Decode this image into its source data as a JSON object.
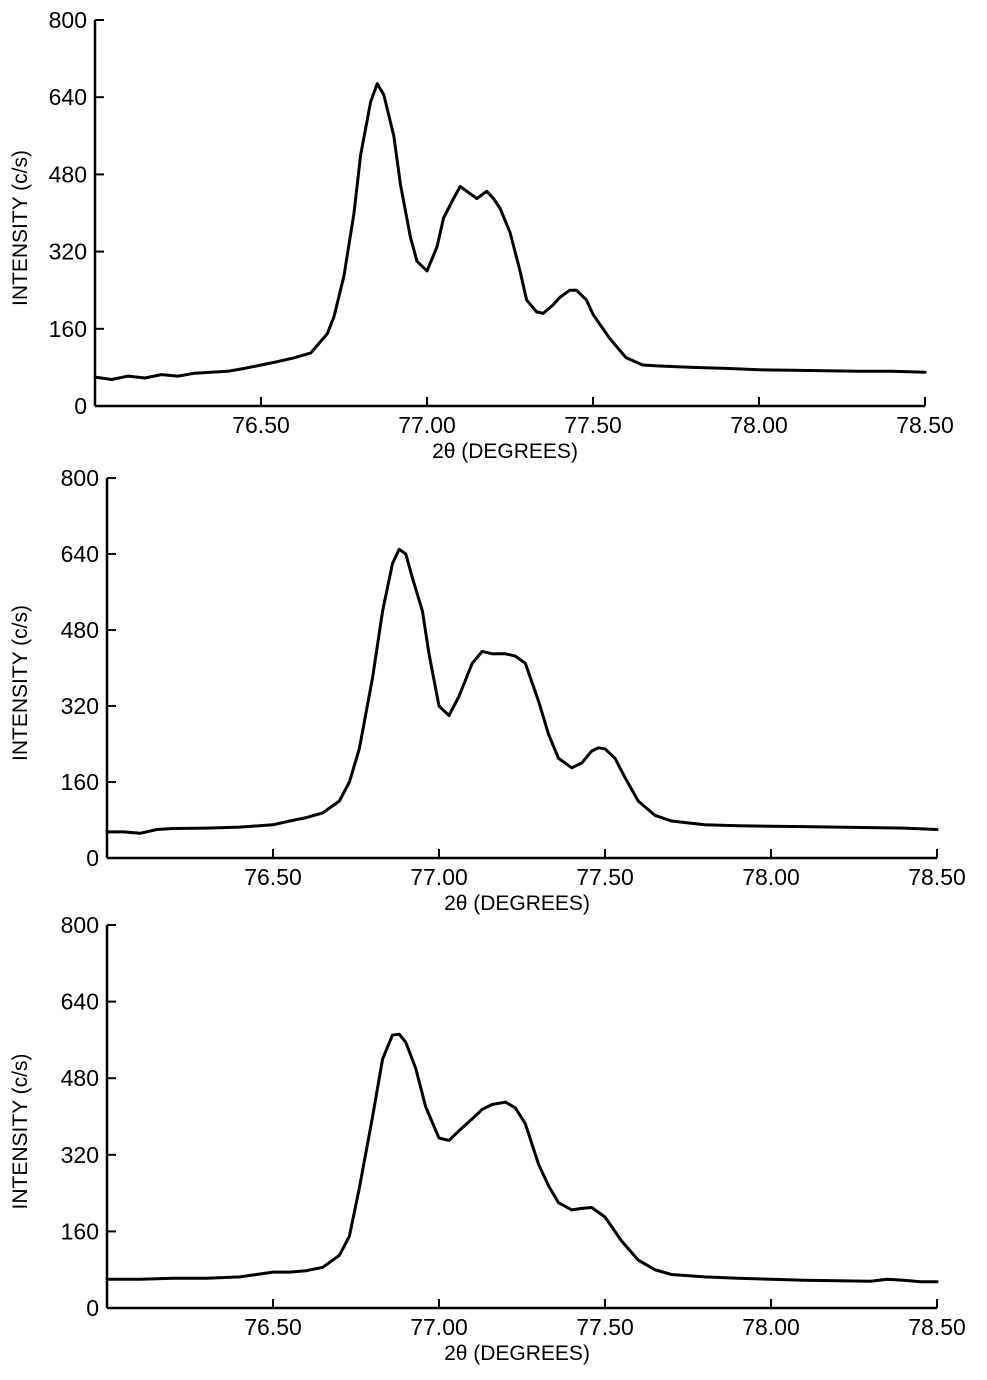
{
  "chart_data": [
    {
      "type": "line",
      "xlabel": "2θ (DEGREES)",
      "ylabel": "INTENSITY (c/s)",
      "xlim": [
        76.0,
        78.5
      ],
      "ylim": [
        0,
        800
      ],
      "xticks": [
        76.5,
        77.0,
        77.5,
        78.0,
        78.5
      ],
      "xtick_labels": [
        "76.50",
        "77.00",
        "77.50",
        "78.00",
        "78.50"
      ],
      "yticks": [
        0,
        160,
        320,
        480,
        640,
        800
      ],
      "ytick_labels": [
        "0",
        "160",
        "320",
        "480",
        "640",
        "800"
      ],
      "grid": false,
      "series": [
        {
          "x": [
            76.0,
            76.05,
            76.1,
            76.15,
            76.2,
            76.25,
            76.3,
            76.35,
            76.4,
            76.45,
            76.5,
            76.55,
            76.6,
            76.65,
            76.7,
            76.72,
            76.75,
            76.78,
            76.8,
            76.83,
            76.85,
            76.87,
            76.9,
            76.92,
            76.95,
            76.97,
            77.0,
            77.03,
            77.05,
            77.08,
            77.1,
            77.13,
            77.15,
            77.18,
            77.2,
            77.22,
            77.25,
            77.28,
            77.3,
            77.33,
            77.35,
            77.38,
            77.4,
            77.43,
            77.45,
            77.48,
            77.5,
            77.55,
            77.6,
            77.65,
            77.7,
            77.8,
            77.9,
            78.0,
            78.1,
            78.2,
            78.3,
            78.4,
            78.5
          ],
          "y": [
            60,
            55,
            62,
            58,
            65,
            62,
            68,
            70,
            72,
            78,
            85,
            92,
            100,
            110,
            150,
            185,
            270,
            400,
            520,
            630,
            668,
            645,
            560,
            460,
            350,
            300,
            280,
            330,
            390,
            430,
            455,
            440,
            430,
            445,
            430,
            410,
            360,
            280,
            220,
            195,
            192,
            210,
            225,
            240,
            240,
            220,
            190,
            140,
            100,
            85,
            83,
            80,
            78,
            75,
            74,
            73,
            72,
            72,
            70
          ]
        }
      ]
    },
    {
      "type": "line",
      "xlabel": "2θ (DEGREES)",
      "ylabel": "INTENSITY (c/s)",
      "xlim": [
        76.0,
        78.5
      ],
      "ylim": [
        0,
        800
      ],
      "xticks": [
        76.5,
        77.0,
        77.5,
        78.0,
        78.5
      ],
      "xtick_labels": [
        "76.50",
        "77.00",
        "77.50",
        "78.00",
        "78.50"
      ],
      "yticks": [
        0,
        160,
        320,
        480,
        640,
        800
      ],
      "ytick_labels": [
        "0",
        "160",
        "320",
        "480",
        "640",
        "800"
      ],
      "grid": false,
      "series": [
        {
          "x": [
            76.0,
            76.05,
            76.1,
            76.15,
            76.2,
            76.3,
            76.4,
            76.5,
            76.55,
            76.6,
            76.65,
            76.7,
            76.73,
            76.76,
            76.8,
            76.83,
            76.86,
            76.88,
            76.9,
            76.92,
            76.95,
            76.97,
            77.0,
            77.03,
            77.06,
            77.1,
            77.13,
            77.16,
            77.2,
            77.23,
            77.26,
            77.3,
            77.33,
            77.36,
            77.4,
            77.43,
            77.46,
            77.48,
            77.5,
            77.53,
            77.56,
            77.6,
            77.65,
            77.7,
            77.8,
            77.9,
            78.0,
            78.1,
            78.2,
            78.3,
            78.4,
            78.5
          ],
          "y": [
            55,
            55,
            52,
            60,
            62,
            63,
            65,
            70,
            78,
            85,
            95,
            120,
            160,
            230,
            380,
            520,
            620,
            650,
            640,
            590,
            520,
            430,
            320,
            300,
            340,
            410,
            435,
            430,
            430,
            425,
            410,
            330,
            260,
            210,
            190,
            200,
            225,
            232,
            230,
            210,
            170,
            120,
            90,
            78,
            70,
            68,
            67,
            66,
            65,
            64,
            63,
            60
          ]
        }
      ]
    },
    {
      "type": "line",
      "xlabel": "2θ (DEGREES)",
      "ylabel": "INTENSITY (c/s)",
      "xlim": [
        76.0,
        78.5
      ],
      "ylim": [
        0,
        800
      ],
      "xticks": [
        76.5,
        77.0,
        77.5,
        78.0,
        78.5
      ],
      "xtick_labels": [
        "76.50",
        "77.00",
        "77.50",
        "78.00",
        "78.50"
      ],
      "yticks": [
        0,
        160,
        320,
        480,
        640,
        800
      ],
      "ytick_labels": [
        "0",
        "160",
        "320",
        "480",
        "640",
        "800"
      ],
      "grid": false,
      "series": [
        {
          "x": [
            76.0,
            76.1,
            76.2,
            76.3,
            76.4,
            76.45,
            76.5,
            76.55,
            76.6,
            76.65,
            76.7,
            76.73,
            76.76,
            76.8,
            76.83,
            76.86,
            76.88,
            76.9,
            76.93,
            76.96,
            77.0,
            77.03,
            77.06,
            77.1,
            77.13,
            77.16,
            77.2,
            77.23,
            77.26,
            77.3,
            77.33,
            77.36,
            77.4,
            77.43,
            77.46,
            77.5,
            77.55,
            77.6,
            77.65,
            77.7,
            77.8,
            77.9,
            78.0,
            78.1,
            78.2,
            78.3,
            78.35,
            78.4,
            78.45,
            78.5
          ],
          "y": [
            60,
            60,
            62,
            62,
            65,
            70,
            75,
            75,
            78,
            85,
            110,
            150,
            250,
            400,
            520,
            570,
            572,
            555,
            500,
            420,
            355,
            350,
            370,
            395,
            415,
            425,
            430,
            418,
            385,
            300,
            255,
            220,
            205,
            208,
            210,
            190,
            140,
            100,
            80,
            70,
            65,
            62,
            60,
            58,
            57,
            56,
            60,
            58,
            55,
            55
          ]
        }
      ]
    }
  ]
}
